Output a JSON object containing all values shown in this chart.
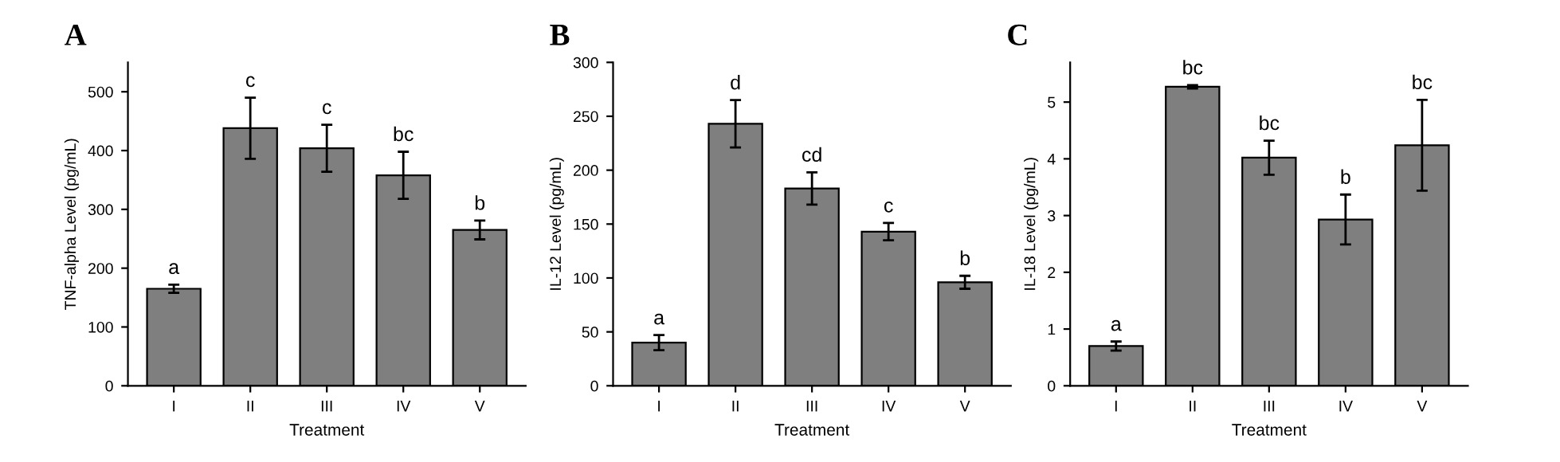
{
  "chart_data": [
    {
      "type": "bar",
      "title": "A",
      "xlabel": "Treatment",
      "ylabel": "TNF-alpha Level (pg/mL)",
      "categories": [
        "I",
        "II",
        "III",
        "IV",
        "V"
      ],
      "values": [
        165,
        438,
        404,
        358,
        265
      ],
      "errors": [
        7,
        52,
        40,
        40,
        16
      ],
      "color": "#7f7f7f",
      "ylim": [
        0,
        550
      ],
      "yticks": [
        0,
        100,
        200,
        300,
        400,
        500
      ],
      "grid": false,
      "legend": false,
      "annotations": [
        {
          "text": "a",
          "x": "I",
          "y": 172
        },
        {
          "text": "c",
          "x": "II",
          "y": 490
        },
        {
          "text": "c",
          "x": "III",
          "y": 444
        },
        {
          "text": "bc",
          "x": "IV",
          "y": 398
        },
        {
          "text": "b",
          "x": "V",
          "y": 281
        }
      ]
    },
    {
      "type": "bar",
      "title": "B",
      "xlabel": "Treatment",
      "ylabel": "IL-12 Level (pg/mL)",
      "categories": [
        "I",
        "II",
        "III",
        "IV",
        "V"
      ],
      "values": [
        40,
        243,
        183,
        143,
        96
      ],
      "errors": [
        7,
        22,
        15,
        8,
        6
      ],
      "color": "#7f7f7f",
      "ylim": [
        0,
        300
      ],
      "yticks": [
        0,
        50,
        100,
        150,
        200,
        250,
        300
      ],
      "grid": false,
      "legend": false,
      "annotations": [
        {
          "text": "a",
          "x": "I",
          "y": 47
        },
        {
          "text": "d",
          "x": "II",
          "y": 265
        },
        {
          "text": "cd",
          "x": "III",
          "y": 198
        },
        {
          "text": "c",
          "x": "IV",
          "y": 151
        },
        {
          "text": "b",
          "x": "V",
          "y": 102
        }
      ]
    },
    {
      "type": "bar",
      "title": "C",
      "xlabel": "Treatment",
      "ylabel": "IL-18 Level (pg/mL)",
      "categories": [
        "I",
        "II",
        "III",
        "IV",
        "V"
      ],
      "values": [
        0.7,
        5.27,
        4.02,
        2.93,
        4.24
      ],
      "errors": [
        0.08,
        0.03,
        0.3,
        0.44,
        0.8
      ],
      "color": "#7f7f7f",
      "ylim": [
        0,
        5.7
      ],
      "yticks": [
        0,
        1,
        2,
        3,
        4,
        5
      ],
      "grid": false,
      "legend": false,
      "annotations": [
        {
          "text": "a",
          "x": "I",
          "y": 0.78
        },
        {
          "text": "bc",
          "x": "II",
          "y": 5.3
        },
        {
          "text": "bc",
          "x": "III",
          "y": 4.32
        },
        {
          "text": "b",
          "x": "IV",
          "y": 3.37
        },
        {
          "text": "bc",
          "x": "V",
          "y": 5.04
        }
      ]
    }
  ]
}
